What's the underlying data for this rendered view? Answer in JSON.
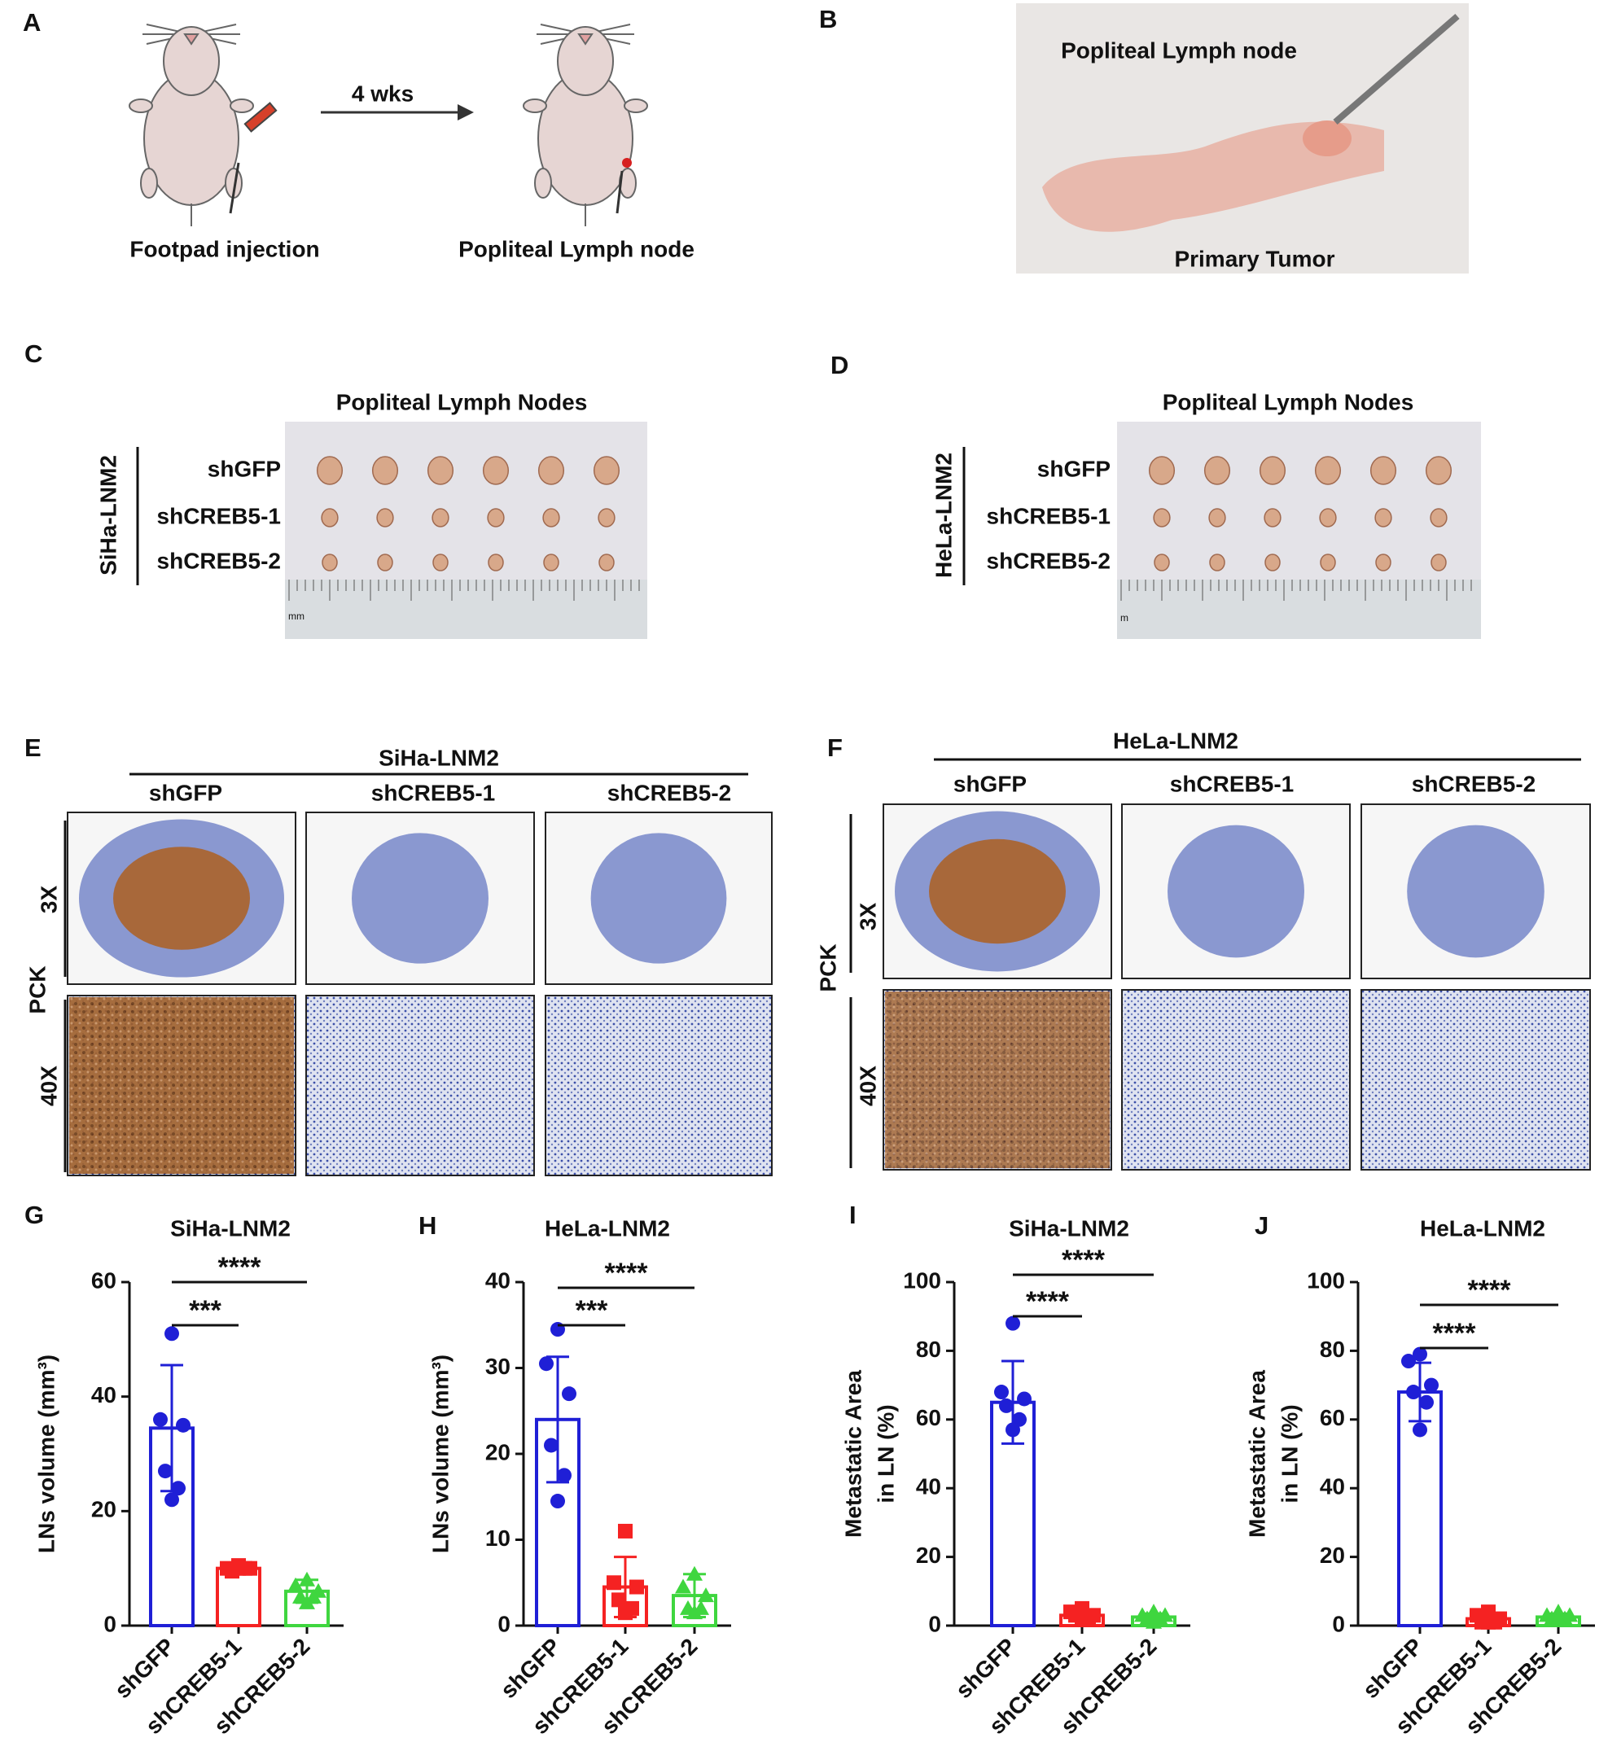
{
  "panels": {
    "A": {
      "letter": "A",
      "interval": "4 wks",
      "left_label": "Footpad injection",
      "right_label": "Popliteal Lymph node"
    },
    "B": {
      "letter": "B",
      "upper_label": "Popliteal Lymph node",
      "lower_label": "Primary Tumor"
    },
    "C": {
      "letter": "C",
      "title": "Popliteal Lymph Nodes",
      "cell_line": "SiHa-LNM2",
      "rows": [
        "shGFP",
        "shCREB5-1",
        "shCREB5-2"
      ],
      "ruler_unit": "mm"
    },
    "D": {
      "letter": "D",
      "title": "Popliteal Lymph Nodes",
      "cell_line": "HeLa-LNM2",
      "rows": [
        "shGFP",
        "shCREB5-1",
        "shCREB5-2"
      ],
      "ruler_unit": "m"
    },
    "E": {
      "letter": "E",
      "cell_line": "SiHa-LNM2",
      "columns": [
        "shGFP",
        "shCREB5-1",
        "shCREB5-2"
      ],
      "stain": "PCK",
      "magnifications": [
        "3X",
        "40X"
      ]
    },
    "F": {
      "letter": "F",
      "cell_line": "HeLa-LNM2",
      "columns": [
        "shGFP",
        "shCREB5-1",
        "shCREB5-2"
      ],
      "stain": "PCK",
      "magnifications": [
        "3X",
        "40X"
      ]
    }
  },
  "chart_data": [
    {
      "type": "bar",
      "letter": "G",
      "title": "SiHa-LNM2",
      "y_label": [
        "LNs volume (mm³)"
      ],
      "categories": [
        "shGFP",
        "shCREB5-1",
        "shCREB5-2"
      ],
      "values": [
        34.5,
        10,
        6
      ],
      "errors": [
        11,
        0.8,
        2
      ],
      "points": [
        [
          51,
          36,
          35,
          27,
          24,
          22
        ],
        [
          10.5,
          10,
          10,
          9.5,
          10,
          10
        ],
        [
          8,
          7,
          6,
          5,
          5,
          4
        ]
      ],
      "colors": [
        "#1f1fd6",
        "#f52222",
        "#3fd63f"
      ],
      "markers": [
        "circle",
        "square",
        "triangle"
      ],
      "ylim": [
        0,
        60
      ],
      "yticks": [
        0,
        20,
        40,
        60
      ],
      "comparisons": [
        {
          "pair": [
            "shGFP",
            "shCREB5-1"
          ],
          "label": "***"
        },
        {
          "pair": [
            "shGFP",
            "shCREB5-2"
          ],
          "label": "****"
        }
      ]
    },
    {
      "type": "bar",
      "letter": "H",
      "title": "HeLa-LNM2",
      "y_label": [
        "LNs volume (mm³)"
      ],
      "categories": [
        "shGFP",
        "shCREB5-1",
        "shCREB5-2"
      ],
      "values": [
        24,
        4.5,
        3.5
      ],
      "errors": [
        7.3,
        3.5,
        2.5
      ],
      "points": [
        [
          34.5,
          30.5,
          27,
          21,
          17.5,
          14.5
        ],
        [
          11,
          5,
          4.5,
          3,
          2,
          1.5
        ],
        [
          6,
          4.5,
          3.5,
          2,
          2,
          1.5
        ]
      ],
      "colors": [
        "#1f1fd6",
        "#f52222",
        "#3fd63f"
      ],
      "markers": [
        "circle",
        "square",
        "triangle"
      ],
      "ylim": [
        0,
        40
      ],
      "yticks": [
        0,
        10,
        20,
        30,
        40
      ],
      "comparisons": [
        {
          "pair": [
            "shGFP",
            "shCREB5-1"
          ],
          "label": "***"
        },
        {
          "pair": [
            "shGFP",
            "shCREB5-2"
          ],
          "label": "****"
        }
      ]
    },
    {
      "type": "bar",
      "letter": "I",
      "title": "SiHa-LNM2",
      "y_label": [
        "Metastatic Area",
        "in LN (%)"
      ],
      "categories": [
        "shGFP",
        "shCREB5-1",
        "shCREB5-2"
      ],
      "values": [
        65,
        3,
        2.5
      ],
      "errors": [
        12,
        1,
        1
      ],
      "points": [
        [
          88,
          68,
          66,
          64,
          60,
          57
        ],
        [
          5,
          4,
          3,
          3,
          2,
          2
        ],
        [
          4,
          3,
          3,
          2,
          2,
          1
        ]
      ],
      "colors": [
        "#1f1fd6",
        "#f52222",
        "#3fd63f"
      ],
      "markers": [
        "circle",
        "square",
        "triangle"
      ],
      "ylim": [
        0,
        100
      ],
      "yticks": [
        0,
        20,
        40,
        60,
        80,
        100
      ],
      "comparisons": [
        {
          "pair": [
            "shGFP",
            "shCREB5-1"
          ],
          "label": "****"
        },
        {
          "pair": [
            "shGFP",
            "shCREB5-2"
          ],
          "label": "****"
        }
      ]
    },
    {
      "type": "bar",
      "letter": "J",
      "title": "HeLa-LNM2",
      "y_label": [
        "Metastatic Area",
        "in LN (%)"
      ],
      "categories": [
        "shGFP",
        "shCREB5-1",
        "shCREB5-2"
      ],
      "values": [
        68,
        2,
        2.5
      ],
      "errors": [
        8.5,
        1,
        1
      ],
      "points": [
        [
          79,
          77,
          70,
          68,
          65,
          57
        ],
        [
          4,
          3,
          2,
          1,
          1,
          1
        ],
        [
          4,
          3,
          3,
          2,
          2,
          2
        ]
      ],
      "colors": [
        "#1f1fd6",
        "#f52222",
        "#3fd63f"
      ],
      "markers": [
        "circle",
        "square",
        "triangle"
      ],
      "ylim": [
        0,
        100
      ],
      "yticks": [
        0,
        20,
        40,
        60,
        80,
        100
      ],
      "comparisons": [
        {
          "pair": [
            "shGFP",
            "shCREB5-1"
          ],
          "label": "****"
        },
        {
          "pair": [
            "shGFP",
            "shCREB5-2"
          ],
          "label": "****"
        }
      ]
    }
  ]
}
